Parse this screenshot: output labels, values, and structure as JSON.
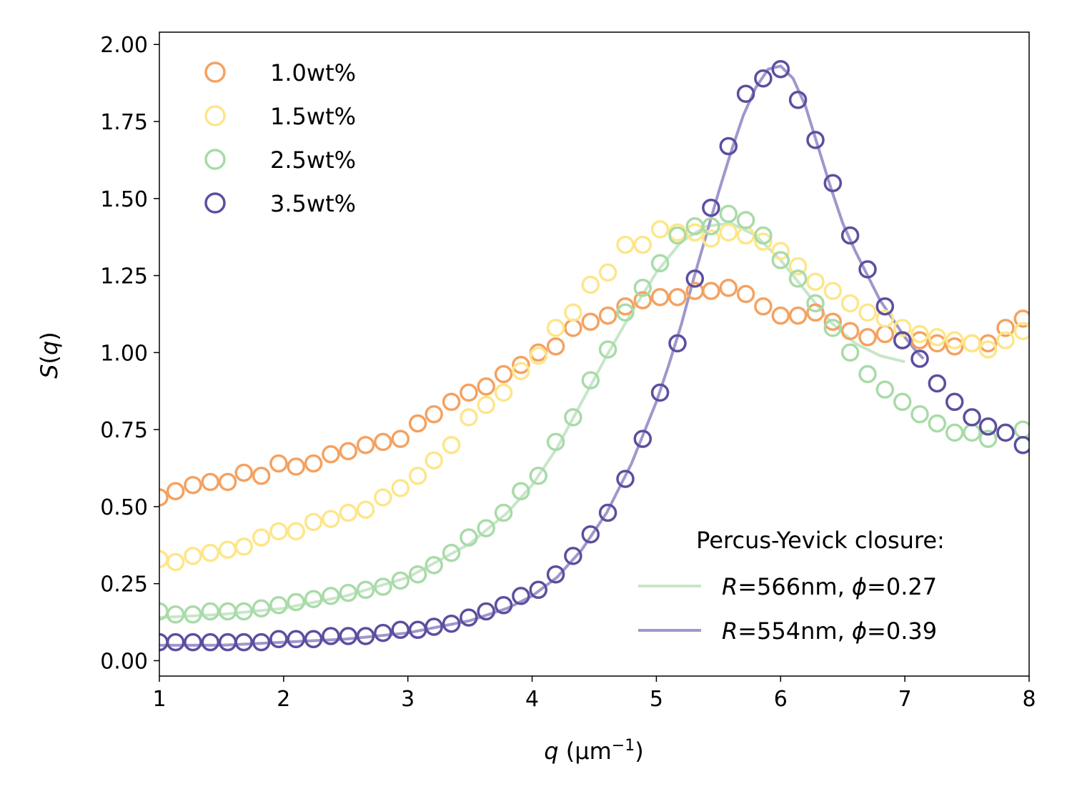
{
  "chart_data": {
    "type": "scatter",
    "xlabel_italic": "q",
    "xlabel_unit": " (μm",
    "xlabel_sup": "−1",
    "xlabel_close": ")",
    "ylabel_italic": "S",
    "ylabel_rest": "(",
    "ylabel_arg": "q",
    "ylabel_close": ")",
    "xlim": [
      1,
      8
    ],
    "ylim": [
      -0.05,
      2.04
    ],
    "xticks": [
      1,
      2,
      3,
      4,
      5,
      6,
      7,
      8
    ],
    "xtick_labels": [
      "1",
      "2",
      "3",
      "4",
      "5",
      "6",
      "7",
      "8"
    ],
    "yticks": [
      0,
      0.25,
      0.5,
      0.75,
      1.0,
      1.25,
      1.5,
      1.75,
      2.0
    ],
    "ytick_labels": [
      "0.00",
      "0.25",
      "0.50",
      "0.75",
      "1.00",
      "1.25",
      "1.50",
      "1.75",
      "2.00"
    ],
    "grid": false,
    "legend_placement": "top-left",
    "fit_legend_placement": "bottom-right",
    "fit_legend_title": "Percus-Yevick closure:",
    "x": [
      1.0,
      1.13,
      1.27,
      1.41,
      1.55,
      1.68,
      1.82,
      1.96,
      2.1,
      2.24,
      2.38,
      2.52,
      2.66,
      2.8,
      2.94,
      3.08,
      3.21,
      3.35,
      3.49,
      3.63,
      3.77,
      3.91,
      4.05,
      4.19,
      4.33,
      4.47,
      4.61,
      4.75,
      4.89,
      5.03,
      5.17,
      5.31,
      5.44,
      5.58,
      5.72,
      5.86,
      6.0,
      6.14,
      6.28,
      6.42,
      6.56,
      6.7,
      6.84,
      6.98,
      7.12,
      7.26,
      7.4,
      7.54,
      7.67,
      7.81,
      7.95
    ],
    "series": [
      {
        "name": "1.0wt%",
        "color": "#f4a261",
        "values": [
          0.53,
          0.55,
          0.57,
          0.58,
          0.58,
          0.61,
          0.6,
          0.64,
          0.63,
          0.64,
          0.67,
          0.68,
          0.7,
          0.71,
          0.72,
          0.77,
          0.8,
          0.84,
          0.87,
          0.89,
          0.93,
          0.96,
          1.0,
          1.02,
          1.08,
          1.1,
          1.12,
          1.15,
          1.17,
          1.18,
          1.18,
          1.2,
          1.2,
          1.21,
          1.19,
          1.15,
          1.12,
          1.12,
          1.13,
          1.1,
          1.07,
          1.05,
          1.06,
          1.04,
          1.04,
          1.03,
          1.02,
          1.03,
          1.03,
          1.08,
          1.11
        ]
      },
      {
        "name": "1.5wt%",
        "color": "#fde68a",
        "values": [
          0.33,
          0.32,
          0.34,
          0.35,
          0.36,
          0.37,
          0.4,
          0.42,
          0.42,
          0.45,
          0.46,
          0.48,
          0.49,
          0.53,
          0.56,
          0.6,
          0.65,
          0.7,
          0.79,
          0.83,
          0.87,
          0.94,
          0.99,
          1.08,
          1.13,
          1.22,
          1.26,
          1.35,
          1.35,
          1.4,
          1.39,
          1.39,
          1.37,
          1.39,
          1.38,
          1.36,
          1.33,
          1.28,
          1.23,
          1.2,
          1.16,
          1.13,
          1.11,
          1.08,
          1.06,
          1.05,
          1.04,
          1.03,
          1.01,
          1.04,
          1.07
        ]
      },
      {
        "name": "2.5wt%",
        "color": "#a8dba8",
        "values": [
          0.16,
          0.15,
          0.15,
          0.16,
          0.16,
          0.16,
          0.17,
          0.18,
          0.19,
          0.2,
          0.21,
          0.22,
          0.23,
          0.24,
          0.26,
          0.28,
          0.31,
          0.35,
          0.4,
          0.43,
          0.48,
          0.55,
          0.6,
          0.71,
          0.79,
          0.91,
          1.01,
          1.13,
          1.21,
          1.29,
          1.38,
          1.41,
          1.41,
          1.45,
          1.43,
          1.38,
          1.3,
          1.24,
          1.16,
          1.08,
          1.0,
          0.93,
          0.88,
          0.84,
          0.8,
          0.77,
          0.74,
          0.74,
          0.72,
          0.74,
          0.75
        ]
      },
      {
        "name": "3.5wt%",
        "color": "#5b4f9f",
        "values": [
          0.06,
          0.06,
          0.06,
          0.06,
          0.06,
          0.06,
          0.06,
          0.07,
          0.07,
          0.07,
          0.08,
          0.08,
          0.08,
          0.09,
          0.1,
          0.1,
          0.11,
          0.12,
          0.14,
          0.16,
          0.18,
          0.21,
          0.23,
          0.28,
          0.34,
          0.41,
          0.48,
          0.59,
          0.72,
          0.87,
          1.03,
          1.24,
          1.47,
          1.67,
          1.84,
          1.89,
          1.92,
          1.82,
          1.69,
          1.55,
          1.38,
          1.27,
          1.15,
          1.04,
          0.98,
          0.9,
          0.84,
          0.79,
          0.76,
          0.74,
          0.7
        ]
      }
    ],
    "fits": [
      {
        "label_italic": "R",
        "label_mid": "=566nm, ",
        "label_phi": "ϕ",
        "label_end": "=0.27",
        "color": "#c8e6c9",
        "x": [
          1.0,
          1.5,
          2.0,
          2.5,
          3.0,
          3.5,
          3.8,
          4.0,
          4.2,
          4.4,
          4.6,
          4.8,
          5.0,
          5.2,
          5.4,
          5.6,
          5.8,
          6.0,
          6.2,
          6.4,
          6.6,
          6.8,
          7.0
        ],
        "values": [
          0.14,
          0.15,
          0.17,
          0.21,
          0.27,
          0.38,
          0.48,
          0.57,
          0.69,
          0.84,
          0.99,
          1.13,
          1.26,
          1.36,
          1.41,
          1.42,
          1.38,
          1.3,
          1.2,
          1.1,
          1.03,
          0.99,
          0.97
        ]
      },
      {
        "label_italic": "R",
        "label_mid": "=554nm, ",
        "label_phi": "ϕ",
        "label_end": "=0.39",
        "color": "#9f97cc",
        "x": [
          1.0,
          1.5,
          2.0,
          2.5,
          3.0,
          3.5,
          3.8,
          4.0,
          4.2,
          4.4,
          4.6,
          4.8,
          5.0,
          5.1,
          5.2,
          5.3,
          5.4,
          5.5,
          5.6,
          5.7,
          5.8,
          5.9,
          6.0,
          6.1,
          6.2,
          6.3,
          6.4,
          6.5,
          6.6,
          6.7,
          6.8,
          6.9,
          7.0,
          7.1,
          7.15
        ],
        "values": [
          0.05,
          0.05,
          0.06,
          0.07,
          0.09,
          0.13,
          0.17,
          0.21,
          0.27,
          0.36,
          0.48,
          0.64,
          0.84,
          0.96,
          1.09,
          1.24,
          1.38,
          1.52,
          1.65,
          1.77,
          1.86,
          1.92,
          1.93,
          1.89,
          1.8,
          1.67,
          1.54,
          1.42,
          1.33,
          1.25,
          1.17,
          1.11,
          1.05,
          1.0,
          0.98
        ]
      }
    ]
  }
}
